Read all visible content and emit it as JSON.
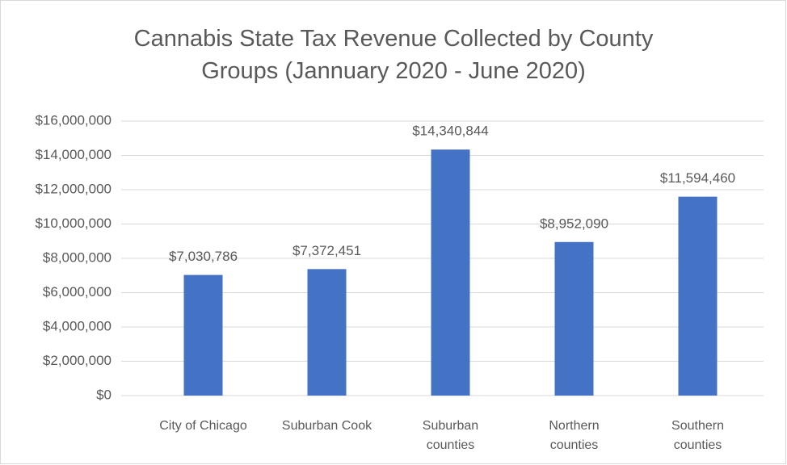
{
  "chart_data": {
    "type": "bar",
    "title": "Cannabis State Tax Revenue Collected by County Groups (Jannuary 2020 - June 2020)",
    "categories": [
      "City of Chicago",
      "Suburban Cook",
      "Suburban counties",
      "Northern counties",
      "Southern counties"
    ],
    "values": [
      7030786,
      7372451,
      14340844,
      8952090,
      11594460
    ],
    "value_labels": [
      "$7,030,786",
      "$7,372,451",
      "$14,340,844",
      "$8,952,090",
      "$11,594,460"
    ],
    "color": "#4472c4",
    "ylim": [
      0,
      16000000
    ],
    "yticks": [
      {
        "value": 0,
        "label": "$0"
      },
      {
        "value": 2000000,
        "label": "$2,000,000"
      },
      {
        "value": 4000000,
        "label": "$4,000,000"
      },
      {
        "value": 6000000,
        "label": "$6,000,000"
      },
      {
        "value": 8000000,
        "label": "$8,000,000"
      },
      {
        "value": 10000000,
        "label": "$10,000,000"
      },
      {
        "value": 12000000,
        "label": "$12,000,000"
      },
      {
        "value": 14000000,
        "label": "$14,000,000"
      },
      {
        "value": 16000000,
        "label": "$16,000,000"
      }
    ],
    "grid": true
  }
}
